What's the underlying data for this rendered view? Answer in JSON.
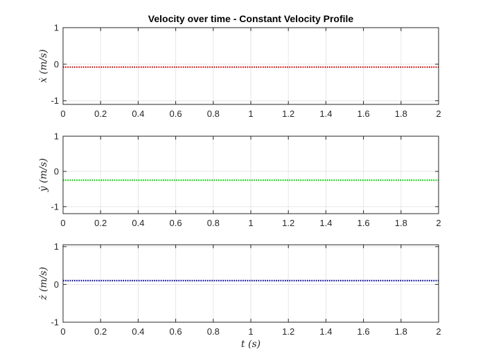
{
  "chart_data": {
    "type": "line",
    "title": "Velocity over time - Constant Velocity Profile",
    "xlabel": "t (s)",
    "grid": true,
    "subplots": [
      {
        "ylabel": "ẋ (m/s)",
        "xlim": [
          0,
          2
        ],
        "ylim": [
          -1.1,
          1
        ],
        "xticks": [
          0,
          0.2,
          0.4,
          0.6,
          0.8,
          1,
          1.2,
          1.4,
          1.6,
          1.8,
          2
        ],
        "xtick_labels": [
          "0",
          "0.2",
          "0.4",
          "0.6",
          "0.8",
          "1",
          "1.2",
          "1.4",
          "1.6",
          "1.8",
          "2"
        ],
        "yticks": [
          -1,
          0,
          1
        ],
        "ytick_labels": [
          "-1",
          "0",
          "1"
        ],
        "series": [
          {
            "color": "#cc0000",
            "style": "dotted",
            "x": [
              0,
              2
            ],
            "y": [
              -0.08,
              -0.08
            ]
          }
        ]
      },
      {
        "ylabel": "ẏ (m/s)",
        "xlim": [
          0,
          2
        ],
        "ylim": [
          -1.2,
          1
        ],
        "xticks": [
          0,
          0.2,
          0.4,
          0.6,
          0.8,
          1,
          1.2,
          1.4,
          1.6,
          1.8,
          2
        ],
        "xtick_labels": [
          "0",
          "0.2",
          "0.4",
          "0.6",
          "0.8",
          "1",
          "1.2",
          "1.4",
          "1.6",
          "1.8",
          "2"
        ],
        "yticks": [
          -1,
          0,
          1
        ],
        "ytick_labels": [
          "-1",
          "0",
          "1"
        ],
        "series": [
          {
            "color": "#00cc00",
            "style": "dotted",
            "x": [
              0,
              2
            ],
            "y": [
              -0.25,
              -0.25
            ]
          }
        ]
      },
      {
        "ylabel": "ż (m/s)",
        "xlim": [
          0,
          2
        ],
        "ylim": [
          -1,
          1.05
        ],
        "xticks": [
          0,
          0.2,
          0.4,
          0.6,
          0.8,
          1,
          1.2,
          1.4,
          1.6,
          1.8,
          2
        ],
        "xtick_labels": [
          "0",
          "0.2",
          "0.4",
          "0.6",
          "0.8",
          "1",
          "1.2",
          "1.4",
          "1.6",
          "1.8",
          "2"
        ],
        "yticks": [
          -1,
          0,
          1
        ],
        "ytick_labels": [
          "-1",
          "0",
          "1"
        ],
        "series": [
          {
            "color": "#000099",
            "style": "dotted",
            "x": [
              0,
              2
            ],
            "y": [
              0.1,
              0.1
            ]
          }
        ]
      }
    ]
  }
}
